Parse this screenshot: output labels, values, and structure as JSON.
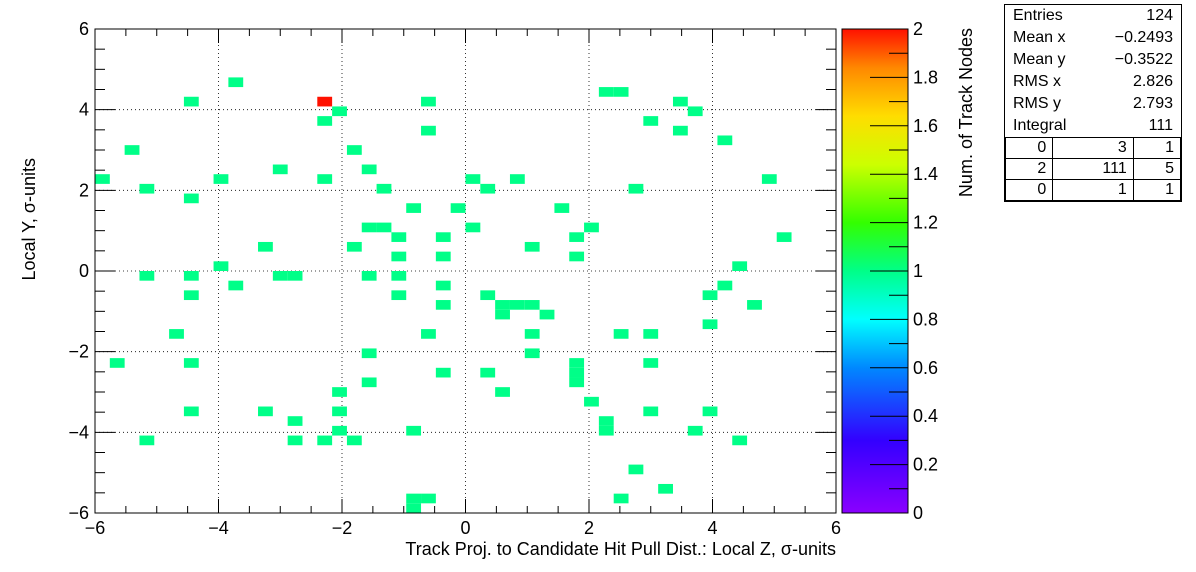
{
  "chart_data": {
    "type": "heatmap",
    "xlabel": "Track Proj. to Candidate Hit Pull Dist.: Local Z, σ-units",
    "ylabel": "Local Y, σ-units",
    "zlabel": "Num. of Track Nodes",
    "xlim": [
      -6,
      6
    ],
    "ylim": [
      -6,
      6
    ],
    "zlim": [
      0,
      2
    ],
    "bin_size": 0.24,
    "x_ticks": [
      "−6",
      "−4",
      "−2",
      "0",
      "2",
      "4",
      "6"
    ],
    "y_ticks": [
      "−6",
      "−4",
      "−2",
      "0",
      "2",
      "4",
      "6"
    ],
    "z_ticks": [
      "0",
      "0.2",
      "0.4",
      "0.6",
      "0.8",
      "1",
      "1.2",
      "1.4",
      "1.6",
      "1.8",
      "2"
    ],
    "grid": true,
    "cells": [
      [
        -5.88,
        2.28,
        1
      ],
      [
        -5.64,
        -2.28,
        1
      ],
      [
        -5.4,
        3.0,
        1
      ],
      [
        -5.16,
        2.04,
        1
      ],
      [
        -5.16,
        -0.12,
        1
      ],
      [
        -5.16,
        -4.2,
        1
      ],
      [
        -4.68,
        -1.56,
        1
      ],
      [
        -4.44,
        4.2,
        1
      ],
      [
        -4.44,
        1.8,
        1
      ],
      [
        -4.44,
        -0.12,
        1
      ],
      [
        -4.44,
        -0.6,
        1
      ],
      [
        -4.44,
        -2.28,
        1
      ],
      [
        -4.44,
        -3.48,
        1
      ],
      [
        -3.96,
        2.28,
        1
      ],
      [
        -3.96,
        0.12,
        1
      ],
      [
        -3.72,
        4.68,
        1
      ],
      [
        -3.72,
        -0.36,
        1
      ],
      [
        -3.24,
        0.6,
        1
      ],
      [
        -3.24,
        -3.48,
        1
      ],
      [
        -3.0,
        2.52,
        1
      ],
      [
        -3.0,
        -0.12,
        1
      ],
      [
        -2.76,
        -0.12,
        1
      ],
      [
        -2.76,
        -3.72,
        1
      ],
      [
        -2.76,
        -4.2,
        1
      ],
      [
        -2.28,
        4.2,
        2
      ],
      [
        -2.28,
        3.72,
        1
      ],
      [
        -2.28,
        2.28,
        1
      ],
      [
        -2.28,
        -4.2,
        1
      ],
      [
        -2.04,
        3.96,
        1
      ],
      [
        -2.04,
        -3.0,
        1
      ],
      [
        -2.04,
        -3.48,
        1
      ],
      [
        -2.04,
        -3.96,
        1
      ],
      [
        -1.8,
        3.0,
        1
      ],
      [
        -1.8,
        0.6,
        1
      ],
      [
        -1.8,
        -4.2,
        1
      ],
      [
        -1.56,
        2.52,
        1
      ],
      [
        -1.56,
        1.08,
        1
      ],
      [
        -1.56,
        -0.12,
        1
      ],
      [
        -1.56,
        -2.04,
        1
      ],
      [
        -1.56,
        -2.76,
        1
      ],
      [
        -1.32,
        2.04,
        1
      ],
      [
        -1.32,
        1.08,
        1
      ],
      [
        -1.08,
        0.84,
        1
      ],
      [
        -1.08,
        0.36,
        1
      ],
      [
        -1.08,
        -0.12,
        1
      ],
      [
        -1.08,
        -0.6,
        1
      ],
      [
        -0.84,
        1.56,
        1
      ],
      [
        -0.84,
        -3.96,
        1
      ],
      [
        -0.84,
        -5.64,
        1
      ],
      [
        -0.84,
        -5.88,
        1
      ],
      [
        -0.6,
        -5.64,
        1
      ],
      [
        -0.6,
        4.2,
        1
      ],
      [
        -0.6,
        3.48,
        1
      ],
      [
        -0.6,
        -1.56,
        1
      ],
      [
        -0.36,
        0.84,
        1
      ],
      [
        -0.36,
        0.36,
        1
      ],
      [
        -0.36,
        -0.36,
        1
      ],
      [
        -0.36,
        -0.84,
        1
      ],
      [
        -0.36,
        -2.52,
        1
      ],
      [
        -0.12,
        1.56,
        1
      ],
      [
        0.12,
        2.28,
        1
      ],
      [
        0.12,
        1.08,
        1
      ],
      [
        0.36,
        2.04,
        1
      ],
      [
        0.36,
        -0.6,
        1
      ],
      [
        0.36,
        -2.52,
        1
      ],
      [
        0.6,
        -0.84,
        1
      ],
      [
        0.6,
        -1.08,
        1
      ],
      [
        0.6,
        -3.0,
        1
      ],
      [
        0.84,
        2.28,
        1
      ],
      [
        0.84,
        -0.84,
        1
      ],
      [
        1.08,
        0.6,
        1
      ],
      [
        1.08,
        -0.84,
        1
      ],
      [
        1.08,
        -1.56,
        1
      ],
      [
        1.08,
        -2.04,
        1
      ],
      [
        1.32,
        -1.08,
        1
      ],
      [
        1.56,
        1.56,
        1
      ],
      [
        1.8,
        0.84,
        1
      ],
      [
        1.8,
        0.36,
        1
      ],
      [
        1.8,
        -2.28,
        1
      ],
      [
        1.8,
        -2.52,
        1
      ],
      [
        1.8,
        -2.76,
        1
      ],
      [
        2.04,
        1.08,
        1
      ],
      [
        2.04,
        -3.24,
        1
      ],
      [
        2.28,
        4.44,
        1
      ],
      [
        2.28,
        -3.72,
        1
      ],
      [
        2.28,
        -3.96,
        1
      ],
      [
        2.52,
        4.44,
        1
      ],
      [
        2.52,
        -1.56,
        1
      ],
      [
        2.52,
        -5.64,
        1
      ],
      [
        2.76,
        2.04,
        1
      ],
      [
        2.76,
        -4.92,
        1
      ],
      [
        3.0,
        3.72,
        1
      ],
      [
        3.0,
        -1.56,
        1
      ],
      [
        3.0,
        -2.28,
        1
      ],
      [
        3.0,
        -3.48,
        1
      ],
      [
        3.24,
        -5.4,
        1
      ],
      [
        3.48,
        4.2,
        1
      ],
      [
        3.48,
        3.48,
        1
      ],
      [
        3.72,
        3.96,
        1
      ],
      [
        3.72,
        -3.96,
        1
      ],
      [
        3.96,
        -0.6,
        1
      ],
      [
        3.96,
        -1.32,
        1
      ],
      [
        3.96,
        -3.48,
        1
      ],
      [
        4.2,
        3.24,
        1
      ],
      [
        4.2,
        -0.36,
        1
      ],
      [
        4.44,
        0.12,
        1
      ],
      [
        4.44,
        -4.2,
        1
      ],
      [
        4.68,
        -0.84,
        1
      ],
      [
        4.92,
        2.28,
        1
      ],
      [
        5.16,
        0.84,
        1
      ]
    ]
  },
  "stats_box": {
    "rows": [
      {
        "label": "Entries",
        "value": "124"
      },
      {
        "label": "Mean x",
        "value": "−0.2493"
      },
      {
        "label": "Mean y",
        "value": "−0.3522"
      },
      {
        "label": "RMS x",
        "value": "2.826"
      },
      {
        "label": "RMS y",
        "value": "2.793"
      },
      {
        "label": "Integral",
        "value": "111"
      }
    ],
    "overflow": [
      [
        "0",
        "3",
        "1"
      ],
      [
        "2",
        "111",
        "5"
      ],
      [
        "0",
        "1",
        "1"
      ]
    ]
  }
}
